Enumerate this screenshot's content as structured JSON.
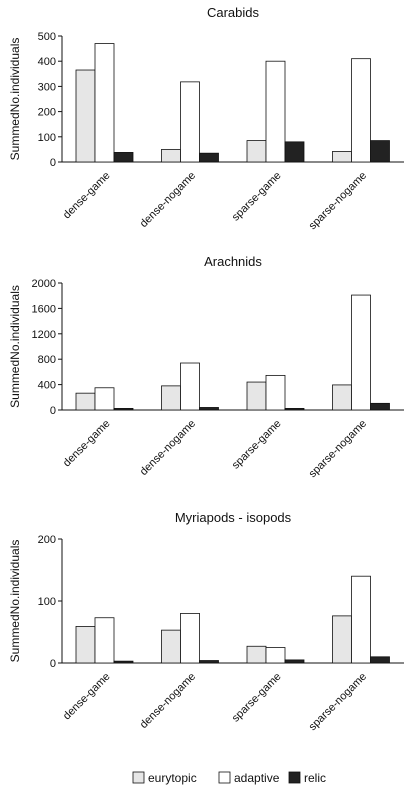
{
  "chart_data": [
    {
      "type": "bar",
      "title": "Carabids",
      "ylabel": "SummedNo.individuals",
      "categories": [
        "dense-game",
        "dense-nogame",
        "sparse-game",
        "sparse-nogame"
      ],
      "series": [
        {
          "name": "eurytopic",
          "values": [
            365,
            50,
            85,
            42
          ]
        },
        {
          "name": "adaptive",
          "values": [
            470,
            318,
            400,
            410
          ]
        },
        {
          "name": "relic",
          "values": [
            38,
            35,
            80,
            85
          ]
        }
      ],
      "ylim": [
        0,
        500
      ],
      "yticks": [
        "0",
        "100",
        "200",
        "300",
        "400",
        "500"
      ]
    },
    {
      "type": "bar",
      "title": "Arachnids",
      "ylabel": "SummedNo.individuals",
      "categories": [
        "dense-game",
        "dense-nogame",
        "sparse-game",
        "sparse-nogame"
      ],
      "series": [
        {
          "name": "eurytopic",
          "values": [
            265,
            380,
            440,
            395
          ]
        },
        {
          "name": "adaptive",
          "values": [
            350,
            740,
            545,
            1810
          ]
        },
        {
          "name": "relic",
          "values": [
            25,
            40,
            25,
            105
          ]
        }
      ],
      "ylim": [
        0,
        2000
      ],
      "yticks": [
        "0",
        "400",
        "800",
        "1200",
        "1600",
        "2000"
      ]
    },
    {
      "type": "bar",
      "title": "Myriapods - isopods",
      "ylabel": "SummedNo.individuals",
      "categories": [
        "dense-game",
        "dense-nogame",
        "sparse-game",
        "sparse-nogame"
      ],
      "series": [
        {
          "name": "eurytopic",
          "values": [
            59,
            53,
            27,
            76
          ]
        },
        {
          "name": "adaptive",
          "values": [
            73,
            80,
            25,
            140
          ]
        },
        {
          "name": "relic",
          "values": [
            3,
            4,
            5,
            10
          ]
        }
      ],
      "ylim": [
        0,
        200
      ],
      "yticks": [
        "0",
        "100",
        "200"
      ]
    }
  ],
  "legend": {
    "items": [
      {
        "name": "eurytopic",
        "color": "#e6e6e6"
      },
      {
        "name": "adaptive",
        "color": "#ffffff"
      },
      {
        "name": "relic",
        "color": "#222222"
      }
    ]
  },
  "colors": {
    "eurytopic": "#e6e6e6",
    "adaptive": "#ffffff",
    "relic": "#222222",
    "stroke": "#111111"
  }
}
